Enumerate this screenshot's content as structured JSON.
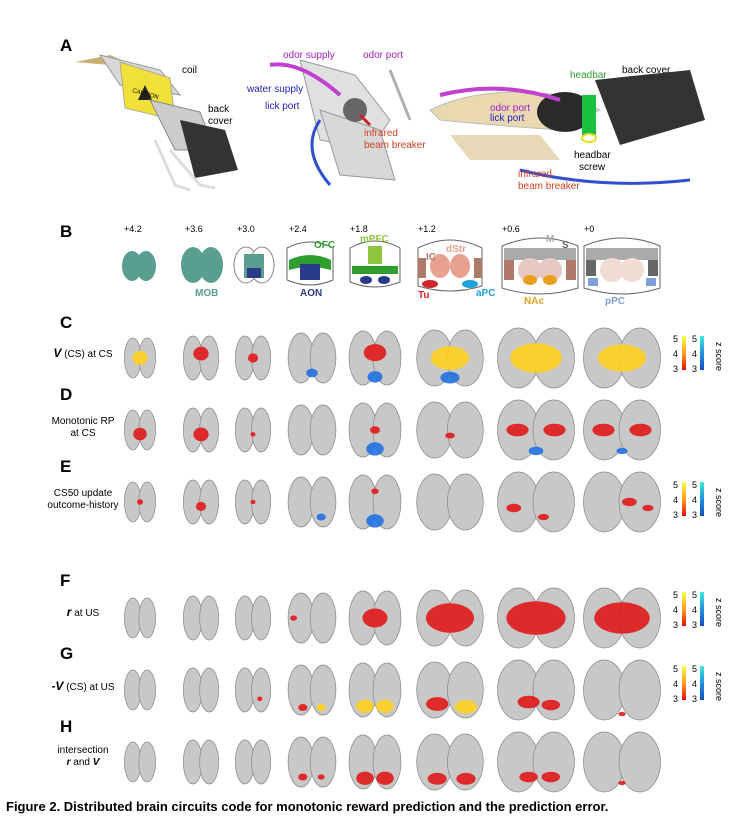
{
  "panel_letters": {
    "A": "A",
    "B": "B",
    "C": "C",
    "D": "D",
    "E": "E",
    "F": "F",
    "G": "G",
    "H": "H"
  },
  "panel_a": {
    "coil": "coil",
    "back_cover_1": "back",
    "back_cover_2": "cover",
    "odor_supply": "odor supply",
    "odor_port": "odor port",
    "water_supply": "water supply",
    "lick_port": "lick port",
    "infrared_1": "infrared",
    "infrared_2": "beam breaker",
    "headbar": "headbar",
    "back_cover_right": "back cover",
    "odor_port_right": "odor port",
    "lick_port_right": "lick port",
    "headbar_screw_1": "headbar",
    "headbar_screw_2": "screw",
    "infrared_right_1": "infrared",
    "infrared_right_2": "beam breaker",
    "caution": "CAUTION"
  },
  "panel_b": {
    "coords": [
      "+4.2",
      "+3.6",
      "+3.0",
      "+2.4",
      "+1.8",
      "+1.2",
      "+0.6",
      "+0"
    ],
    "regions": {
      "MOB": "MOB",
      "AON": "AON",
      "OFC": "OFC",
      "mPFC": "mPFC",
      "IC": "IC",
      "dStr": "dStr",
      "Tu": "Tu",
      "aPC": "aPC",
      "M": "M",
      "S": "S",
      "NAc": "NAc",
      "pPC": "pPC"
    },
    "colors": {
      "MOB": "#5a9e8f",
      "AON": "#2a3a8a",
      "OFC": "#2e9e2e",
      "mPFC": "#8ec63f",
      "IC": "#b07a6a",
      "dStr": "#e8a090",
      "Tu": "#d0282a",
      "aPC": "#1ea0d8",
      "M": "#aaaaaa",
      "S": "#666666",
      "NAc": "#e8a020",
      "pPC": "#7f9fd8"
    }
  },
  "rows": {
    "C": {
      "label_v": "V",
      "label_rest": " (CS) at CS"
    },
    "D": {
      "line1": "Monotonic RP",
      "line2": "at CS"
    },
    "E": {
      "line1": "CS50 update",
      "line2": "outcome-history"
    },
    "F": {
      "label_v": "r",
      "label_rest": " at US"
    },
    "G": {
      "label_v": "-V",
      "label_rest": " (CS) at US"
    },
    "H": {
      "line1": "intersection",
      "line2_a": "r",
      "line2_b": " and ",
      "line2_c": "V"
    }
  },
  "colorbar": {
    "top": "5",
    "mid": "4",
    "bottom": "3",
    "title": "z score",
    "warm_top": "#ffff40",
    "warm_bottom": "#e01010",
    "cool_top": "#40e8d8",
    "cool_bottom": "#1050c0"
  },
  "caption": "Figure 2. Distributed brain circuits code for monotonic reward prediction and the prediction error."
}
